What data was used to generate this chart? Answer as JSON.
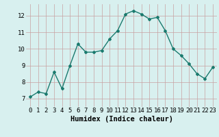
{
  "x": [
    0,
    1,
    2,
    3,
    4,
    5,
    6,
    7,
    8,
    9,
    10,
    11,
    12,
    13,
    14,
    15,
    16,
    17,
    18,
    19,
    20,
    21,
    22,
    23
  ],
  "y": [
    7.1,
    7.4,
    7.3,
    8.6,
    7.6,
    9.0,
    10.3,
    9.8,
    9.8,
    9.9,
    10.6,
    11.1,
    12.1,
    12.3,
    12.1,
    11.8,
    11.9,
    11.1,
    10.0,
    9.6,
    9.1,
    8.5,
    8.2,
    8.9
  ],
  "line_color": "#1a7a6e",
  "marker": "D",
  "marker_size": 2.0,
  "bg_color": "#d8f0ef",
  "grid_color_major": "#c8a0a0",
  "grid_color_minor": "#d0c0c0",
  "xlabel": "Humidex (Indice chaleur)",
  "ylim": [
    6.5,
    12.7
  ],
  "xlim": [
    -0.5,
    23.5
  ],
  "yticks": [
    7,
    8,
    9,
    10,
    11,
    12
  ],
  "xticks": [
    0,
    1,
    2,
    3,
    4,
    5,
    6,
    7,
    8,
    9,
    10,
    11,
    12,
    13,
    14,
    15,
    16,
    17,
    18,
    19,
    20,
    21,
    22,
    23
  ],
  "xlabel_fontsize": 7.5,
  "tick_fontsize": 6.5,
  "line_width": 1.0
}
